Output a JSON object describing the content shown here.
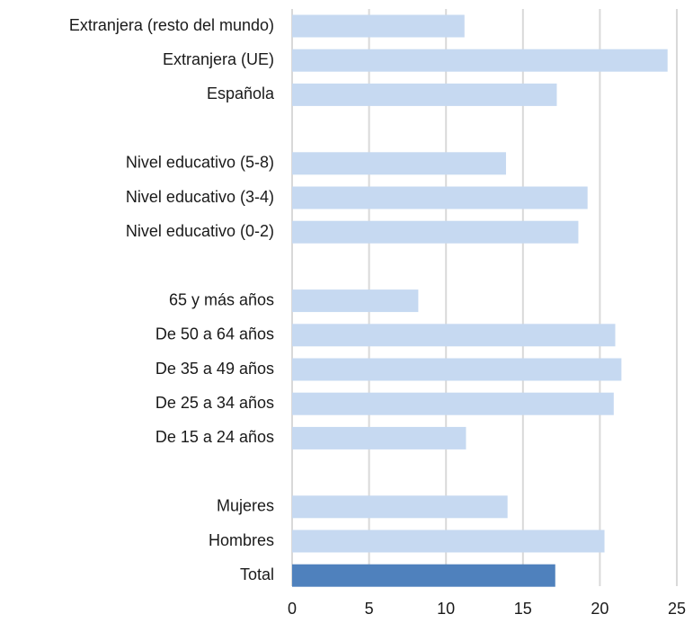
{
  "chart_data": {
    "type": "bar",
    "orientation": "horizontal",
    "title": "",
    "xlabel": "",
    "ylabel": "",
    "xlim": [
      0,
      25
    ],
    "xticks": [
      0,
      5,
      10,
      15,
      20,
      25
    ],
    "xtick_labels": [
      "0",
      "5",
      "10",
      "15",
      "20",
      "25"
    ],
    "grid": "vertical",
    "legend": "none",
    "categories": [
      "Extranjera (resto del mundo)",
      "Extranjera (UE)",
      "Española",
      "",
      "Nivel educativo (5-8)",
      "Nivel educativo (3-4)",
      "Nivel educativo (0-2)",
      "",
      "65 y más años",
      "De 50 a 64 años",
      "De 35 a 49 años",
      "De 25 a 34 años",
      "De 15 a 24 años",
      "",
      "Mujeres",
      "Hombres",
      "Total"
    ],
    "values": [
      11.2,
      24.4,
      17.2,
      null,
      13.9,
      19.2,
      18.6,
      null,
      8.2,
      21.0,
      21.4,
      20.9,
      11.3,
      null,
      14.0,
      20.3,
      17.1
    ],
    "highlight_category": "Total",
    "colors": {
      "bar": "#c6d9f1",
      "highlight": "#4f81bd",
      "grid": "#d9d9d9",
      "text": "#1a1a1a"
    }
  }
}
